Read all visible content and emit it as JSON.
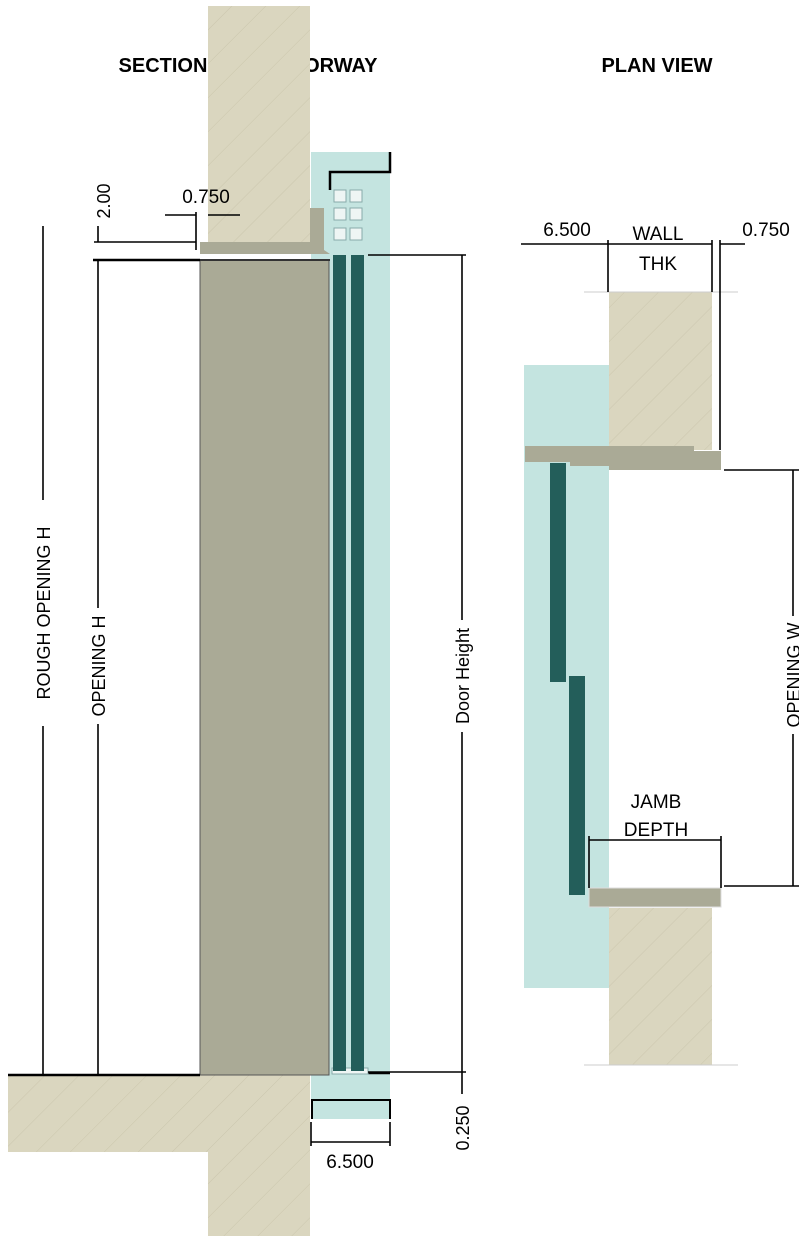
{
  "titles": {
    "section": "SECTION THRU DOORWAY",
    "plan": "PLAN VIEW"
  },
  "section_dims": {
    "header_gap": "2.00",
    "jamb_offset": "0.750",
    "rough_opening_h": "ROUGH OPENING H",
    "opening_h": "OPENING H",
    "door_height": "Door Height",
    "bottom_gap": "0.250",
    "track_depth": "6.500"
  },
  "plan_dims": {
    "track_depth": "6.500",
    "wall_thk_line1": "WALL",
    "wall_thk_line2": "THK",
    "jamb_offset": "0.750",
    "opening_w": "OPENING W",
    "jamb_depth_line1": "JAMB",
    "jamb_depth_line2": "DEPTH"
  },
  "colors": {
    "wall": "#dad6bf",
    "frame": "#aaaa96",
    "glass": "#c4e4e0",
    "panel": "#235e5a"
  }
}
